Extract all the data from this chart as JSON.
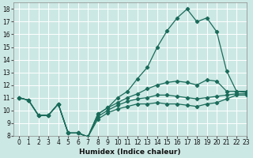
{
  "xlabel": "Humidex (Indice chaleur)",
  "bg_color": "#cce8e4",
  "grid_color": "#ffffff",
  "line_color": "#1a6b5a",
  "xlim": [
    -0.5,
    23
  ],
  "ylim": [
    8,
    18.5
  ],
  "xticks": [
    0,
    1,
    2,
    3,
    4,
    5,
    6,
    7,
    8,
    9,
    10,
    11,
    12,
    13,
    14,
    15,
    16,
    17,
    18,
    19,
    20,
    21,
    22,
    23
  ],
  "yticks": [
    8,
    9,
    10,
    11,
    12,
    13,
    14,
    15,
    16,
    17,
    18
  ],
  "line1_x": [
    0,
    1,
    2,
    3,
    4,
    5,
    6,
    7,
    8,
    9,
    10,
    11,
    12,
    13,
    14,
    15,
    16,
    17,
    18,
    19,
    20,
    21,
    22,
    23
  ],
  "line1_y": [
    11.0,
    10.8,
    9.6,
    9.6,
    10.5,
    8.2,
    8.2,
    7.9,
    9.7,
    10.2,
    11.0,
    11.5,
    12.5,
    13.4,
    15.0,
    16.3,
    17.3,
    18.0,
    17.0,
    17.3,
    16.2,
    13.1,
    11.5,
    11.5
  ],
  "line2_x": [
    0,
    1,
    2,
    3,
    4,
    5,
    6,
    7,
    8,
    9,
    10,
    11,
    12,
    13,
    14,
    15,
    16,
    17,
    18,
    19,
    20,
    21,
    22,
    23
  ],
  "line2_y": [
    11.0,
    10.8,
    9.6,
    9.6,
    10.5,
    8.2,
    8.2,
    7.9,
    9.7,
    10.2,
    10.6,
    11.0,
    11.3,
    11.7,
    12.0,
    12.2,
    12.3,
    12.2,
    12.0,
    12.4,
    12.3,
    11.5,
    11.5,
    11.4
  ],
  "line3_x": [
    0,
    1,
    2,
    3,
    4,
    5,
    6,
    7,
    8,
    9,
    10,
    11,
    12,
    13,
    14,
    15,
    16,
    17,
    18,
    19,
    20,
    21,
    22,
    23
  ],
  "line3_y": [
    11.0,
    10.8,
    9.6,
    9.6,
    10.5,
    8.2,
    8.2,
    7.9,
    9.5,
    10.0,
    10.4,
    10.7,
    10.9,
    11.0,
    11.2,
    11.2,
    11.1,
    11.0,
    10.9,
    11.0,
    11.1,
    11.2,
    11.3,
    11.3
  ],
  "line4_x": [
    0,
    1,
    2,
    3,
    4,
    5,
    6,
    7,
    8,
    9,
    10,
    11,
    12,
    13,
    14,
    15,
    16,
    17,
    18,
    19,
    20,
    21,
    22,
    23
  ],
  "line4_y": [
    11.0,
    10.8,
    9.6,
    9.6,
    10.5,
    8.2,
    8.2,
    7.9,
    9.3,
    9.8,
    10.1,
    10.3,
    10.5,
    10.5,
    10.6,
    10.5,
    10.5,
    10.4,
    10.3,
    10.5,
    10.6,
    10.9,
    11.2,
    11.2
  ]
}
